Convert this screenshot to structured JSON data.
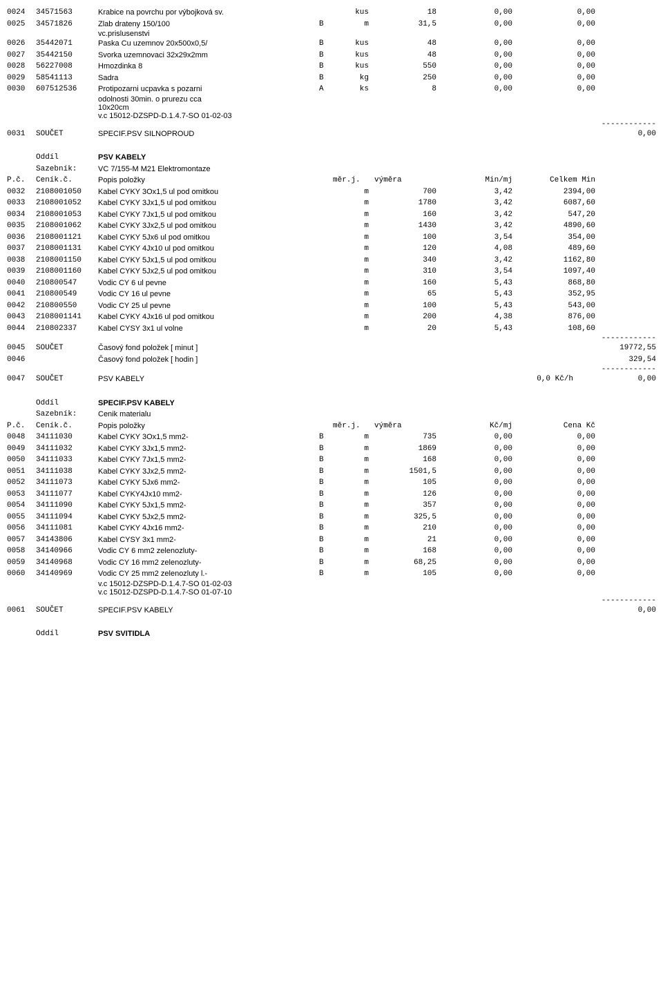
{
  "sep": "------------",
  "part1_rows": [
    {
      "n": "0024",
      "code": "34571563",
      "desc": "Krabice na povrchu por výbojková sv.",
      "flag": "",
      "unit": "kus",
      "qty": "18",
      "rate": "0,00",
      "tot": "0,00"
    },
    {
      "n": "0025",
      "code": "34571826",
      "desc": "Zlab drateny 150/100",
      "flag": "B",
      "unit": "m",
      "qty": "31,5",
      "rate": "0,00",
      "tot": "0,00",
      "sub": [
        "vc.prislusenstvi"
      ]
    },
    {
      "n": "0026",
      "code": "35442071",
      "desc": "Paska Cu uzemnov 20x500x0,5/",
      "flag": "B",
      "unit": "kus",
      "qty": "48",
      "rate": "0,00",
      "tot": "0,00"
    },
    {
      "n": "0027",
      "code": "35442150",
      "desc": "Svorka uzemnovaci 32x29x2mm",
      "flag": "B",
      "unit": "kus",
      "qty": "48",
      "rate": "0,00",
      "tot": "0,00"
    },
    {
      "n": "0028",
      "code": "56227008",
      "desc": "Hmozdinka 8",
      "flag": "B",
      "unit": "kus",
      "qty": "550",
      "rate": "0,00",
      "tot": "0,00"
    },
    {
      "n": "0029",
      "code": "58541113",
      "desc": "Sadra",
      "flag": "B",
      "unit": "kg",
      "qty": "250",
      "rate": "0,00",
      "tot": "0,00"
    },
    {
      "n": "0030",
      "code": "607512536",
      "desc": "Protipozarni ucpavka s pozarni",
      "flag": "A",
      "unit": "ks",
      "qty": "8",
      "rate": "0,00",
      "tot": "0,00",
      "sub": [
        "odolnosti 30min. o prurezu cca",
        "10x20cm",
        "v.c 15012-DZSPD-D.1.4.7-SO 01-02-03"
      ]
    }
  ],
  "sum1": {
    "n": "0031",
    "label": "SOUČET",
    "text": "SPECIF.PSV SILNOPROUD",
    "amount": "0,00"
  },
  "oddil2": {
    "title": "PSV KABELY",
    "saz": "VC 7/155-M M21 Elektromontaze"
  },
  "hdr2": {
    "n": "P.č.",
    "code": "Ceník.č.",
    "desc": "Popis položky",
    "unit": "měr.j.",
    "qty": "výměra",
    "rate": "Min/mj",
    "tot": "Celkem Min"
  },
  "part2_rows": [
    {
      "n": "0032",
      "code": "2108001050",
      "desc": "Kabel CYKY 3Ox1,5 ul pod omitkou",
      "unit": "m",
      "qty": "700",
      "rate": "3,42",
      "tot": "2394,00"
    },
    {
      "n": "0033",
      "code": "2108001052",
      "desc": "Kabel CYKY 3Jx1,5 ul pod omitkou",
      "unit": "m",
      "qty": "1780",
      "rate": "3,42",
      "tot": "6087,60"
    },
    {
      "n": "0034",
      "code": "2108001053",
      "desc": "Kabel CYKY 7Jx1,5 ul pod omitkou",
      "unit": "m",
      "qty": "160",
      "rate": "3,42",
      "tot": "547,20"
    },
    {
      "n": "0035",
      "code": "2108001062",
      "desc": "Kabel CYKY 3Jx2,5 ul pod omitkou",
      "unit": "m",
      "qty": "1430",
      "rate": "3,42",
      "tot": "4890,60"
    },
    {
      "n": "0036",
      "code": "2108001121",
      "desc": "Kabel CYKY 5Jx6 ul pod omitkou",
      "unit": "m",
      "qty": "100",
      "rate": "3,54",
      "tot": "354,00"
    },
    {
      "n": "0037",
      "code": "2108001131",
      "desc": "Kabel CYKY 4Jx10 ul pod omitkou",
      "unit": "m",
      "qty": "120",
      "rate": "4,08",
      "tot": "489,60"
    },
    {
      "n": "0038",
      "code": "2108001150",
      "desc": "Kabel CYKY 5Jx1,5 ul pod omitkou",
      "unit": "m",
      "qty": "340",
      "rate": "3,42",
      "tot": "1162,80"
    },
    {
      "n": "0039",
      "code": "2108001160",
      "desc": "Kabel CYKY 5Jx2,5 ul pod omitkou",
      "unit": "m",
      "qty": "310",
      "rate": "3,54",
      "tot": "1097,40"
    },
    {
      "n": "0040",
      "code": "210800547",
      "desc": "Vodic CY 6 ul pevne",
      "unit": "m",
      "qty": "160",
      "rate": "5,43",
      "tot": "868,80"
    },
    {
      "n": "0041",
      "code": "210800549",
      "desc": "Vodic CY 16 ul pevne",
      "unit": "m",
      "qty": "65",
      "rate": "5,43",
      "tot": "352,95"
    },
    {
      "n": "0042",
      "code": "210800550",
      "desc": "Vodic CY 25 ul pevne",
      "unit": "m",
      "qty": "100",
      "rate": "5,43",
      "tot": "543,00"
    },
    {
      "n": "0043",
      "code": "2108001141",
      "desc": "Kabel CYKY 4Jx16 ul pod omitkou",
      "unit": "m",
      "qty": "200",
      "rate": "4,38",
      "tot": "876,00"
    },
    {
      "n": "0044",
      "code": "210802337",
      "desc": "Kabel CYSY 3x1 ul volne",
      "unit": "m",
      "qty": "20",
      "rate": "5,43",
      "tot": "108,60"
    }
  ],
  "sum2a": {
    "n": "0045",
    "label": "SOUČET",
    "text": "Časový fond položek [ minut ]",
    "amount": "19772,55"
  },
  "sum2b": {
    "n": "0046",
    "label": "",
    "text": "Časový fond položek [ hodin ]",
    "amount": "329,54"
  },
  "sum2c": {
    "n": "0047",
    "label": "SOUČET",
    "text": "PSV KABELY",
    "mid": "0,0 Kč/h",
    "amount": "0,00"
  },
  "oddil3": {
    "title": "SPECIF.PSV KABELY",
    "saz": "Cenik materialu"
  },
  "hdr3": {
    "n": "P.č.",
    "code": "Ceník.č.",
    "desc": "Popis položky",
    "unit": "měr.j.",
    "qty": "výměra",
    "rate": "Kč/mj",
    "tot": "Cena Kč"
  },
  "part3_rows": [
    {
      "n": "0048",
      "code": "34111030",
      "desc": "Kabel CYKY 3Ox1,5 mm2-",
      "flag": "B",
      "unit": "m",
      "qty": "735",
      "rate": "0,00",
      "tot": "0,00"
    },
    {
      "n": "0049",
      "code": "34111032",
      "desc": "Kabel CYKY 3Jx1,5 mm2-",
      "flag": "B",
      "unit": "m",
      "qty": "1869",
      "rate": "0,00",
      "tot": "0,00"
    },
    {
      "n": "0050",
      "code": "34111033",
      "desc": "Kabel CYKY 7Jx1,5 mm2-",
      "flag": "B",
      "unit": "m",
      "qty": "168",
      "rate": "0,00",
      "tot": "0,00"
    },
    {
      "n": "0051",
      "code": "34111038",
      "desc": "Kabel CYKY 3Jx2,5 mm2-",
      "flag": "B",
      "unit": "m",
      "qty": "1501,5",
      "rate": "0,00",
      "tot": "0,00"
    },
    {
      "n": "0052",
      "code": "34111073",
      "desc": "Kabel CYKY 5Jx6 mm2-",
      "flag": "B",
      "unit": "m",
      "qty": "105",
      "rate": "0,00",
      "tot": "0,00"
    },
    {
      "n": "0053",
      "code": "34111077",
      "desc": "Kabel CYKY4Jx10 mm2-",
      "flag": "B",
      "unit": "m",
      "qty": "126",
      "rate": "0,00",
      "tot": "0,00"
    },
    {
      "n": "0054",
      "code": "34111090",
      "desc": "Kabel CYKY 5Jx1,5 mm2-",
      "flag": "B",
      "unit": "m",
      "qty": "357",
      "rate": "0,00",
      "tot": "0,00"
    },
    {
      "n": "0055",
      "code": "34111094",
      "desc": "Kabel CYKY 5Jx2,5 mm2-",
      "flag": "B",
      "unit": "m",
      "qty": "325,5",
      "rate": "0,00",
      "tot": "0,00"
    },
    {
      "n": "0056",
      "code": "34111081",
      "desc": "Kabel CYKY 4Jx16 mm2-",
      "flag": "B",
      "unit": "m",
      "qty": "210",
      "rate": "0,00",
      "tot": "0,00"
    },
    {
      "n": "0057",
      "code": "34143806",
      "desc": "Kabel CYSY 3x1 mm2-",
      "flag": "B",
      "unit": "m",
      "qty": "21",
      "rate": "0,00",
      "tot": "0,00"
    },
    {
      "n": "0058",
      "code": "34140966",
      "desc": "Vodic CY 6 mm2 zelenozluty-",
      "flag": "B",
      "unit": "m",
      "qty": "168",
      "rate": "0,00",
      "tot": "0,00"
    },
    {
      "n": "0059",
      "code": "34140968",
      "desc": "Vodic CY 16 mm2 zelenozluty-",
      "flag": "B",
      "unit": "m",
      "qty": "68,25",
      "rate": "0,00",
      "tot": "0,00"
    },
    {
      "n": "0060",
      "code": "34140969",
      "desc": "Vodic CY 25 mm2 zelenozluty l.-",
      "flag": "B",
      "unit": "m",
      "qty": "105",
      "rate": "0,00",
      "tot": "0,00",
      "sub": [
        "v.c 15012-DZSPD-D.1.4.7-SO 01-02-03",
        "v.c 15012-DZSPD-D.1.4.7-SO 01-07-10"
      ]
    }
  ],
  "sum3": {
    "n": "0061",
    "label": "SOUČET",
    "text": "SPECIF.PSV KABELY",
    "amount": "0,00"
  },
  "oddil4": {
    "title": "PSV SVITIDLA"
  }
}
